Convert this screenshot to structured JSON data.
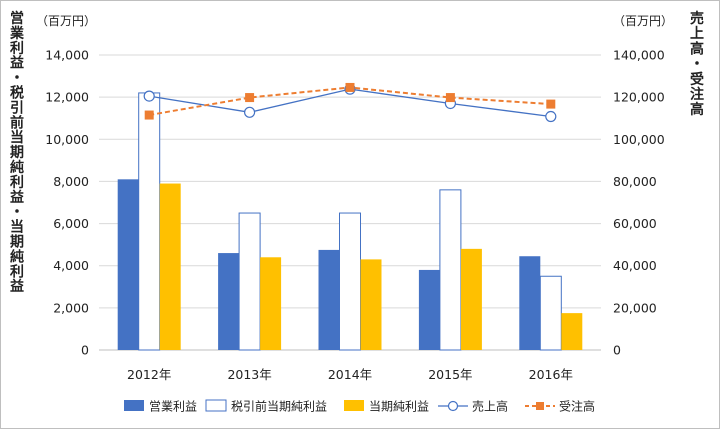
{
  "chart_data": {
    "type": "bar",
    "categories": [
      "2012年",
      "2013年",
      "2014年",
      "2015年",
      "2016年"
    ],
    "series": [
      {
        "name": "営業利益",
        "kind": "bar",
        "axis": "left",
        "color": "#4472c4",
        "values": [
          8100,
          4600,
          4750,
          3800,
          4450
        ]
      },
      {
        "name": "税引前当期純利益",
        "kind": "bar",
        "axis": "left",
        "color": "#ffffff",
        "stroke": "#4472c4",
        "values": [
          12200,
          6500,
          6500,
          7600,
          3500
        ]
      },
      {
        "name": "当期純利益",
        "kind": "bar",
        "axis": "left",
        "color": "#ffc000",
        "values": [
          7900,
          4400,
          4300,
          4800,
          1750
        ]
      },
      {
        "name": "売上高",
        "kind": "line",
        "axis": "right",
        "color": "#4472c4",
        "marker": "circle",
        "values": [
          120500,
          112800,
          123800,
          117000,
          110800
        ]
      },
      {
        "name": "受注高",
        "kind": "line",
        "axis": "right",
        "color": "#ed7d31",
        "marker": "square",
        "dashed": true,
        "values": [
          111500,
          119800,
          124600,
          119800,
          116700
        ]
      }
    ],
    "y_left": {
      "unit": "（百万円）",
      "title": "営業利益・税引前当期純利益・当期純利益",
      "ylim": [
        0,
        14000
      ],
      "ticks": [
        "0",
        "2,000",
        "4,000",
        "6,000",
        "8,000",
        "10,000",
        "12,000",
        "14,000"
      ]
    },
    "y_right": {
      "unit": "（百万円）",
      "title": "売上高・受注高",
      "ylim": [
        0,
        140000
      ],
      "ticks": [
        "0",
        "20,000",
        "40,000",
        "60,000",
        "80,000",
        "100,000",
        "120,000",
        "140,000"
      ]
    },
    "grid": true,
    "legend": "bottom"
  }
}
